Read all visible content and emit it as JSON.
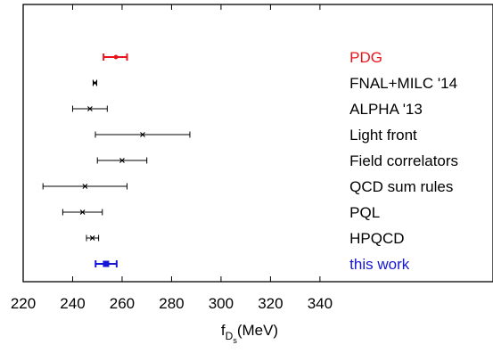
{
  "chart_data": {
    "type": "scatter",
    "style": "horizontal error bars",
    "xlabel": "f",
    "xlabel_sub1": "D",
    "xlabel_sub2": "s",
    "xlabel_unit": "(MeV)",
    "xlim": [
      220,
      350
    ],
    "xticks": [
      220,
      240,
      260,
      280,
      300,
      320,
      340
    ],
    "grid": false,
    "label_x": 352,
    "rows": [
      {
        "label": "PDG",
        "value": 257.5,
        "lo": 252.5,
        "hi": 262.0,
        "color": "#e8141c",
        "marker": "dot",
        "thick": true
      },
      {
        "label": "FNAL+MILC '14",
        "value": 249.0,
        "lo": 248.3,
        "hi": 249.7,
        "color": "#000000",
        "marker": "x",
        "thick": false
      },
      {
        "label": "ALPHA '13",
        "value": 247.0,
        "lo": 240.0,
        "hi": 254.0,
        "color": "#000000",
        "marker": "x",
        "thick": false
      },
      {
        "label": "Light front",
        "value": 268.3,
        "lo": 249.2,
        "hi": 287.4,
        "color": "#000000",
        "marker": "x",
        "thick": false
      },
      {
        "label": "Field correlators",
        "value": 260.0,
        "lo": 250.0,
        "hi": 270.0,
        "color": "#000000",
        "marker": "x",
        "thick": false
      },
      {
        "label": "QCD sum rules",
        "value": 245.0,
        "lo": 228.0,
        "hi": 262.0,
        "color": "#000000",
        "marker": "x",
        "thick": false
      },
      {
        "label": "PQL",
        "value": 244.0,
        "lo": 236.0,
        "hi": 252.0,
        "color": "#000000",
        "marker": "x",
        "thick": false
      },
      {
        "label": "HPQCD",
        "value": 248.0,
        "lo": 245.6,
        "hi": 250.5,
        "color": "#000000",
        "marker": "x",
        "thick": false
      },
      {
        "label": "this work",
        "value": 253.5,
        "lo": 249.3,
        "hi": 257.8,
        "color": "#1616d6",
        "marker": "square",
        "thick": true
      }
    ]
  }
}
